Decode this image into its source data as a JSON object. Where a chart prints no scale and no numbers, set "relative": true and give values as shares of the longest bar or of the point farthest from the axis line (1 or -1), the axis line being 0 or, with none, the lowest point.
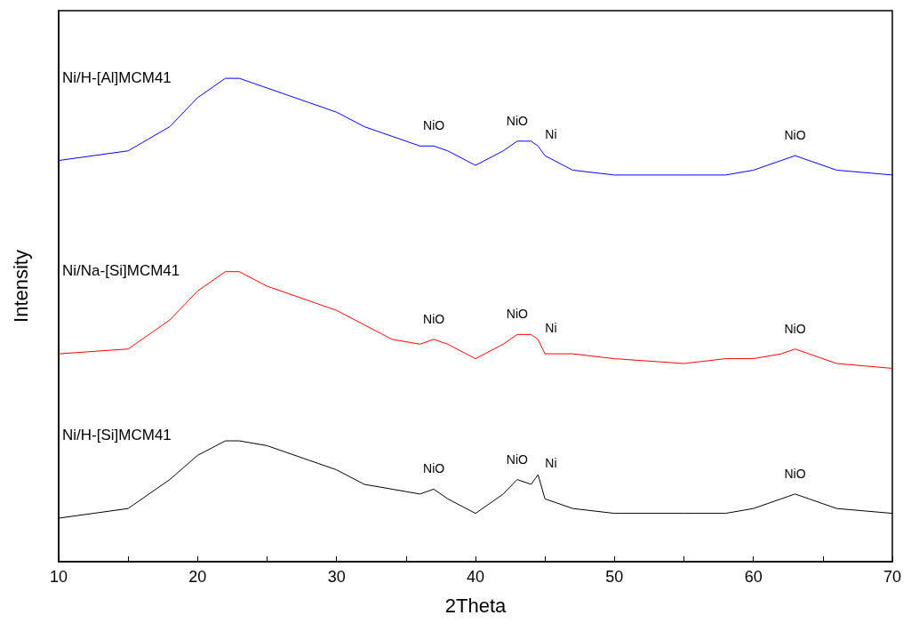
{
  "chart_data": {
    "type": "line",
    "relative": true,
    "xlabel": "2Theta",
    "ylabel": "Intensity",
    "xlim": [
      10,
      70
    ],
    "xticks": [
      10,
      20,
      30,
      40,
      50,
      60,
      70
    ],
    "grid": false,
    "legend": false,
    "marker": "none",
    "line_style": "solid",
    "x": [
      10,
      15,
      18,
      20,
      22,
      23,
      25,
      28,
      30,
      32,
      34,
      36,
      37,
      38,
      40,
      42,
      43,
      44,
      44.5,
      45,
      47,
      50,
      55,
      58,
      60,
      62,
      63,
      64,
      66,
      70
    ],
    "series": [
      {
        "name": "Ni/H-[Al]MCM41",
        "color": "#0000ff",
        "values": [
          0.83,
          0.85,
          0.9,
          0.96,
          1.0,
          1.0,
          0.98,
          0.95,
          0.93,
          0.9,
          0.88,
          0.86,
          0.86,
          0.85,
          0.82,
          0.85,
          0.87,
          0.87,
          0.86,
          0.84,
          0.81,
          0.8,
          0.8,
          0.8,
          0.81,
          0.83,
          0.84,
          0.83,
          0.81,
          0.8
        ]
      },
      {
        "name": "Ni/Na-[Si]MCM41",
        "color": "#ff0000",
        "values": [
          0.43,
          0.44,
          0.5,
          0.56,
          0.6,
          0.6,
          0.57,
          0.54,
          0.52,
          0.49,
          0.46,
          0.45,
          0.46,
          0.45,
          0.42,
          0.45,
          0.47,
          0.47,
          0.46,
          0.43,
          0.43,
          0.42,
          0.41,
          0.42,
          0.42,
          0.43,
          0.44,
          0.43,
          0.41,
          0.4
        ]
      },
      {
        "name": "Ni/H-[Si]MCM41",
        "color": "#000000",
        "values": [
          0.09,
          0.11,
          0.17,
          0.22,
          0.25,
          0.25,
          0.24,
          0.21,
          0.19,
          0.16,
          0.15,
          0.14,
          0.15,
          0.13,
          0.1,
          0.14,
          0.17,
          0.16,
          0.18,
          0.13,
          0.11,
          0.1,
          0.1,
          0.1,
          0.11,
          0.13,
          0.14,
          0.13,
          0.11,
          0.1
        ]
      }
    ],
    "annotations": [
      {
        "text": "NiO",
        "x": 37,
        "y": 0.86
      },
      {
        "text": "NiO",
        "x": 43,
        "y": 0.87
      },
      {
        "text": "Ni",
        "x": 44.5,
        "y": 0.86
      },
      {
        "text": "NiO",
        "x": 63,
        "y": 0.84
      },
      {
        "text": "NiO",
        "x": 37,
        "y": 0.46
      },
      {
        "text": "NiO",
        "x": 43,
        "y": 0.47
      },
      {
        "text": "Ni",
        "x": 44.5,
        "y": 0.46
      },
      {
        "text": "NiO",
        "x": 63,
        "y": 0.44
      },
      {
        "text": "NiO",
        "x": 37,
        "y": 0.15
      },
      {
        "text": "NiO",
        "x": 43,
        "y": 0.17
      },
      {
        "text": "Ni",
        "x": 44.5,
        "y": 0.18
      },
      {
        "text": "NiO",
        "x": 63,
        "y": 0.14
      }
    ]
  }
}
